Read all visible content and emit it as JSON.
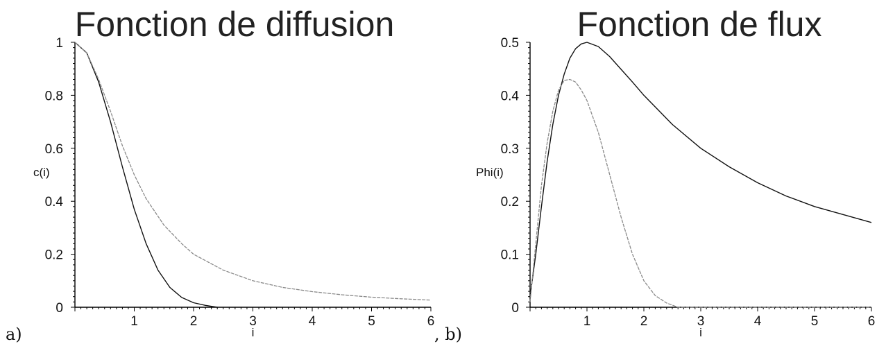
{
  "panels": {
    "a": "a)",
    "b": ", b)"
  },
  "colors": {
    "series_dark": "#111111",
    "series_grey": "#8a8a8a"
  },
  "chart_data": [
    {
      "type": "line",
      "title": "Fonction de diffusion",
      "xlabel": "i",
      "ylabel": "c(i)",
      "xlim": [
        0,
        6
      ],
      "ylim": [
        0,
        1
      ],
      "xticks": [
        "1",
        "2",
        "3",
        "4",
        "5",
        "6"
      ],
      "yticks": [
        "0",
        "0.2",
        "0.4",
        "0.6",
        "0.8",
        "1"
      ],
      "grid": false,
      "series": [
        {
          "x": [
            0,
            0.2,
            0.4,
            0.6,
            0.8,
            1.0,
            1.2,
            1.4,
            1.6,
            1.8,
            2.0,
            2.2,
            2.4
          ],
          "y": [
            1.0,
            0.96,
            0.85,
            0.7,
            0.53,
            0.37,
            0.24,
            0.14,
            0.075,
            0.037,
            0.017,
            0.007,
            0.0
          ]
        },
        {
          "x": [
            0,
            0.2,
            0.4,
            0.6,
            0.8,
            1.0,
            1.2,
            1.5,
            1.8,
            2.0,
            2.5,
            3.0,
            3.5,
            4.0,
            4.5,
            5.0,
            5.5,
            6.0
          ],
          "y": [
            1.0,
            0.96,
            0.86,
            0.74,
            0.61,
            0.5,
            0.41,
            0.31,
            0.24,
            0.2,
            0.14,
            0.1,
            0.075,
            0.059,
            0.047,
            0.038,
            0.032,
            0.027
          ]
        }
      ]
    },
    {
      "type": "line",
      "title": "Fonction de flux",
      "xlabel": "i",
      "ylabel": "Phi(i)",
      "xlim": [
        0,
        6
      ],
      "ylim": [
        0,
        0.5
      ],
      "xticks": [
        "1",
        "2",
        "3",
        "4",
        "5",
        "6"
      ],
      "yticks": [
        "0",
        "0.1",
        "0.2",
        "0.3",
        "0.4",
        "0.5"
      ],
      "grid": false,
      "series": [
        {
          "x": [
            0,
            0.1,
            0.2,
            0.3,
            0.4,
            0.5,
            0.6,
            0.7,
            0.8,
            0.9,
            1.0,
            1.2,
            1.4,
            1.6,
            1.8,
            2.0,
            2.5,
            3.0,
            3.5,
            4.0,
            4.5,
            5.0,
            5.5,
            6.0
          ],
          "y": [
            0.02,
            0.1,
            0.19,
            0.275,
            0.345,
            0.4,
            0.44,
            0.47,
            0.488,
            0.497,
            0.5,
            0.492,
            0.473,
            0.449,
            0.425,
            0.4,
            0.345,
            0.3,
            0.265,
            0.235,
            0.21,
            0.19,
            0.175,
            0.16
          ]
        },
        {
          "x": [
            0,
            0.1,
            0.2,
            0.3,
            0.4,
            0.5,
            0.6,
            0.7,
            0.8,
            0.9,
            1.0,
            1.2,
            1.4,
            1.6,
            1.8,
            2.0,
            2.2,
            2.4,
            2.6,
            3.0,
            4.0,
            5.0,
            6.0
          ],
          "y": [
            0.01,
            0.12,
            0.23,
            0.31,
            0.37,
            0.41,
            0.428,
            0.43,
            0.425,
            0.41,
            0.39,
            0.33,
            0.25,
            0.17,
            0.1,
            0.05,
            0.022,
            0.008,
            0.0,
            0.0,
            0.0,
            0.0,
            0.0
          ]
        }
      ]
    }
  ]
}
